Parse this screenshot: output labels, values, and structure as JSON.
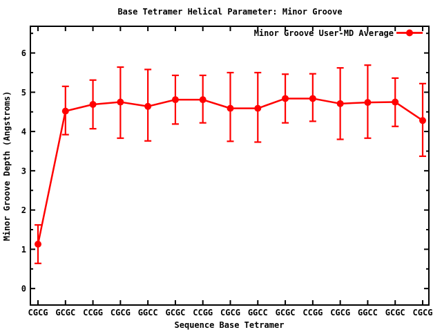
{
  "chart_data": {
    "type": "line",
    "title": "Base Tetramer Helical Parameter: Minor Groove",
    "xlabel": "Sequence Base Tetramer",
    "ylabel": "Minor Groove Depth (Angstroms)",
    "categories": [
      "CGCG",
      "GCGC",
      "CCGG",
      "CGCG",
      "GGCC",
      "GCGC",
      "CCGG",
      "CGCG",
      "GGCC",
      "GCGC",
      "CCGG",
      "CGCG",
      "GGCC",
      "GCGC",
      "CGCG"
    ],
    "series": [
      {
        "name": "Minor Groove User-MD Average",
        "values": [
          1.13,
          4.52,
          4.69,
          4.75,
          4.64,
          4.81,
          4.81,
          4.59,
          4.59,
          4.84,
          4.84,
          4.71,
          4.74,
          4.75,
          4.28
        ],
        "error_upper": [
          1.62,
          5.15,
          5.31,
          5.64,
          5.58,
          5.43,
          5.43,
          5.5,
          5.5,
          5.46,
          5.47,
          5.62,
          5.69,
          5.36,
          5.22
        ],
        "error_lower": [
          0.64,
          3.92,
          4.07,
          3.83,
          3.76,
          4.19,
          4.22,
          3.75,
          3.73,
          4.22,
          4.26,
          3.8,
          3.83,
          4.13,
          3.37
        ]
      }
    ],
    "yticks": [
      0,
      1,
      2,
      3,
      4,
      5,
      6
    ],
    "ytick_labels": [
      "0",
      "1",
      "2",
      "3",
      "4",
      "5",
      "6"
    ],
    "minor_ytick_interval": 0.5,
    "ylim": [
      -0.42,
      6.68
    ],
    "grid": false,
    "legend_position": "top-right-inside",
    "marker": "filled-circle",
    "colors": {
      "series": "#ff0000",
      "axis": "#000000",
      "text": "#000000",
      "background": "#ffffff"
    }
  }
}
